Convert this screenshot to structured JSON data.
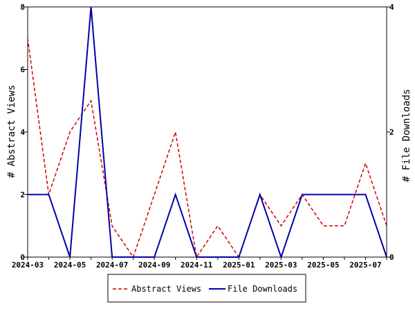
{
  "chart_data": {
    "type": "line",
    "categories": [
      "2024-03",
      "2024-04",
      "2024-05",
      "2024-06",
      "2024-07",
      "2024-08",
      "2024-09",
      "2024-10",
      "2024-11",
      "2024-12",
      "2025-01",
      "2025-02",
      "2025-03",
      "2025-04",
      "2025-05",
      "2025-06",
      "2025-07",
      "2025-08"
    ],
    "x_tick_labels": [
      "2024-03",
      "2024-05",
      "2024-07",
      "2024-09",
      "2024-11",
      "2025-01",
      "2025-03",
      "2025-05",
      "2025-07"
    ],
    "ylabel": "# Abstract Views",
    "y2label": "# File Downloads",
    "ylim": [
      0,
      8
    ],
    "y2lim": [
      0,
      4
    ],
    "y_ticks": [
      0,
      2,
      4,
      6,
      8
    ],
    "y2_ticks": [
      0,
      2,
      4
    ],
    "grid": false,
    "legend_position": "bottom-center",
    "series": [
      {
        "name": "Abstract Views",
        "axis": "left",
        "color": "#cc0000",
        "dash": "dashed",
        "values": [
          7,
          2,
          4,
          5,
          1,
          0,
          2,
          4,
          0,
          1,
          0,
          2,
          1,
          2,
          1,
          1,
          3,
          1
        ]
      },
      {
        "name": "File Downloads",
        "axis": "right",
        "color": "#0000aa",
        "dash": "solid",
        "values": [
          1,
          1,
          0,
          4,
          0,
          0,
          0,
          1,
          0,
          0,
          0,
          1,
          0,
          1,
          1,
          1,
          1,
          0
        ]
      }
    ]
  }
}
